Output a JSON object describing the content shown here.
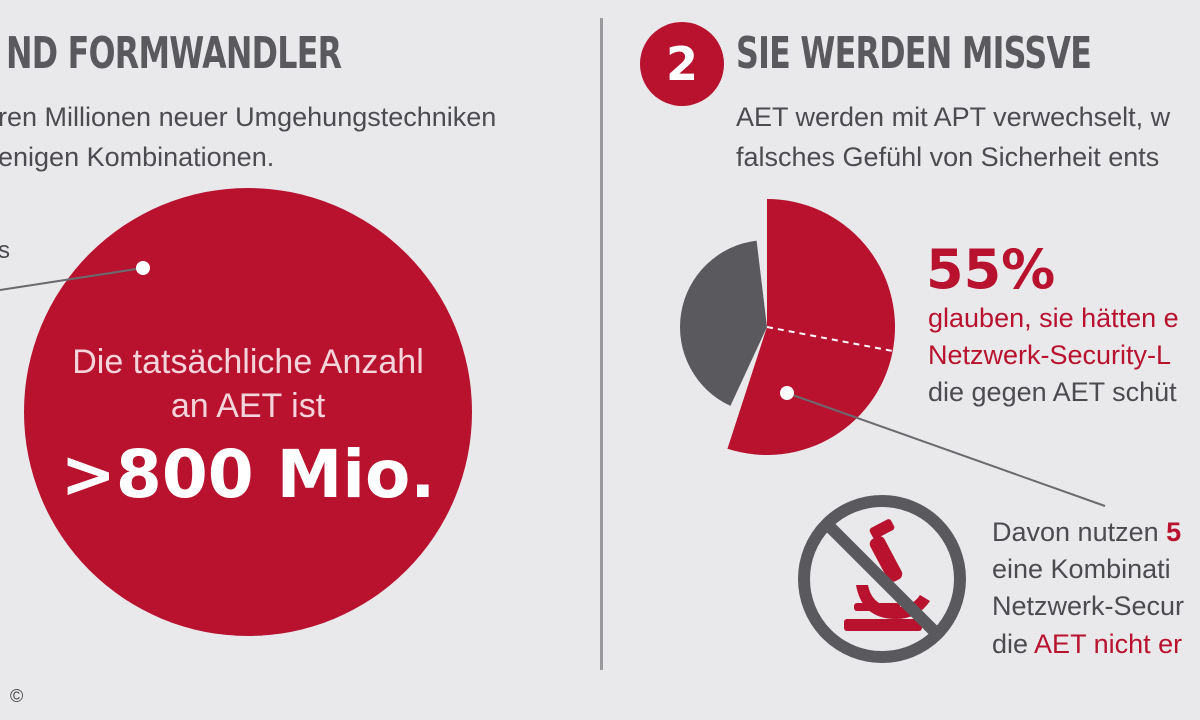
{
  "left": {
    "headline": "ND FORMWANDLER",
    "intro_line1": "ren Millionen neuer Umgehungstechniken",
    "intro_line2": "enigen Kombinationen.",
    "fragment_label": "s",
    "circle_line1": "Die tatsächliche Anzahl",
    "circle_line2": "an AET ist",
    "circle_value": ">800 Mio."
  },
  "right": {
    "number": "2",
    "headline": "SIE WERDEN MISSVE",
    "intro_line1": "AET werden mit APT verwechselt, w",
    "intro_line2": "falsches Gefühl von Sicherheit ents",
    "percent": "55%",
    "pct_line1": "glauben, sie hätten e",
    "pct_line2": "Netzwerk-Security-L",
    "pct_line3": "die gegen AET schüt",
    "sub_line1_a": "Davon nutzen ",
    "sub_line1_b": "5",
    "sub_line2": "eine Kombinati",
    "sub_line3": "Netzwerk-Secur",
    "sub_line4_a": "die ",
    "sub_line4_b": "AET nicht er"
  },
  "copyright": "©",
  "colors": {
    "accent": "#b8122e",
    "gray": "#5a5a5e",
    "background": "#e9e9ec"
  },
  "pie": {
    "highlight_percent": 55
  }
}
